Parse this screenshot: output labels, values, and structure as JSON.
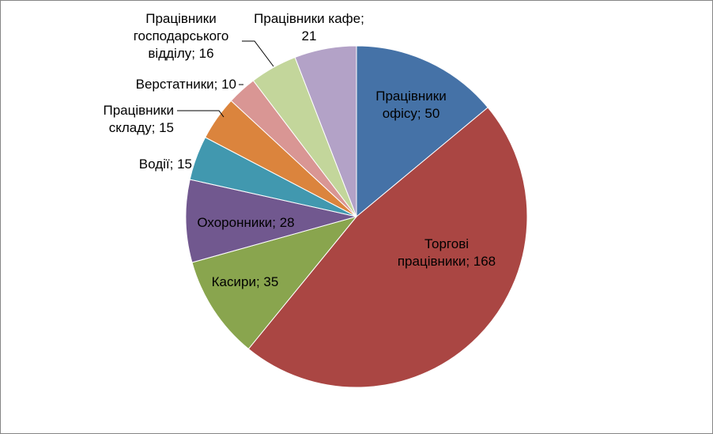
{
  "chart_data": {
    "type": "pie",
    "title": "",
    "start_angle_deg": 0,
    "direction": "clockwise",
    "slices": [
      {
        "name": "Працівники офісу",
        "value": 50,
        "color": "#4572A7",
        "label_lines": [
          "Працівники",
          "офісу; 50"
        ]
      },
      {
        "name": "Торгові працівники",
        "value": 168,
        "color": "#AA4643",
        "label_lines": [
          "Торгові",
          "працівники; 168"
        ]
      },
      {
        "name": "Касири",
        "value": 35,
        "color": "#89A54E",
        "label_lines": [
          "Касири; 35"
        ]
      },
      {
        "name": "Охоронники",
        "value": 28,
        "color": "#71588F",
        "label_lines": [
          "Охоронники; 28"
        ]
      },
      {
        "name": "Водії",
        "value": 15,
        "color": "#4198AF",
        "label_lines": [
          "Водії; 15"
        ]
      },
      {
        "name": "Працівники складу",
        "value": 15,
        "color": "#DB843D",
        "label_lines": [
          "Працівники",
          "складу; 15"
        ]
      },
      {
        "name": "Верстатники",
        "value": 10,
        "color": "#D99694",
        "label_lines": [
          "Верстатники; 10"
        ]
      },
      {
        "name": "Працівники господарського відділу",
        "value": 16,
        "color": "#C3D69B",
        "label_lines": [
          "Працівники",
          "господарського",
          "відділу; 16"
        ]
      },
      {
        "name": "Працівники кафе",
        "value": 21,
        "color": "#B3A2C7",
        "label_lines": [
          "Працівники кафе;",
          "21"
        ]
      }
    ]
  }
}
